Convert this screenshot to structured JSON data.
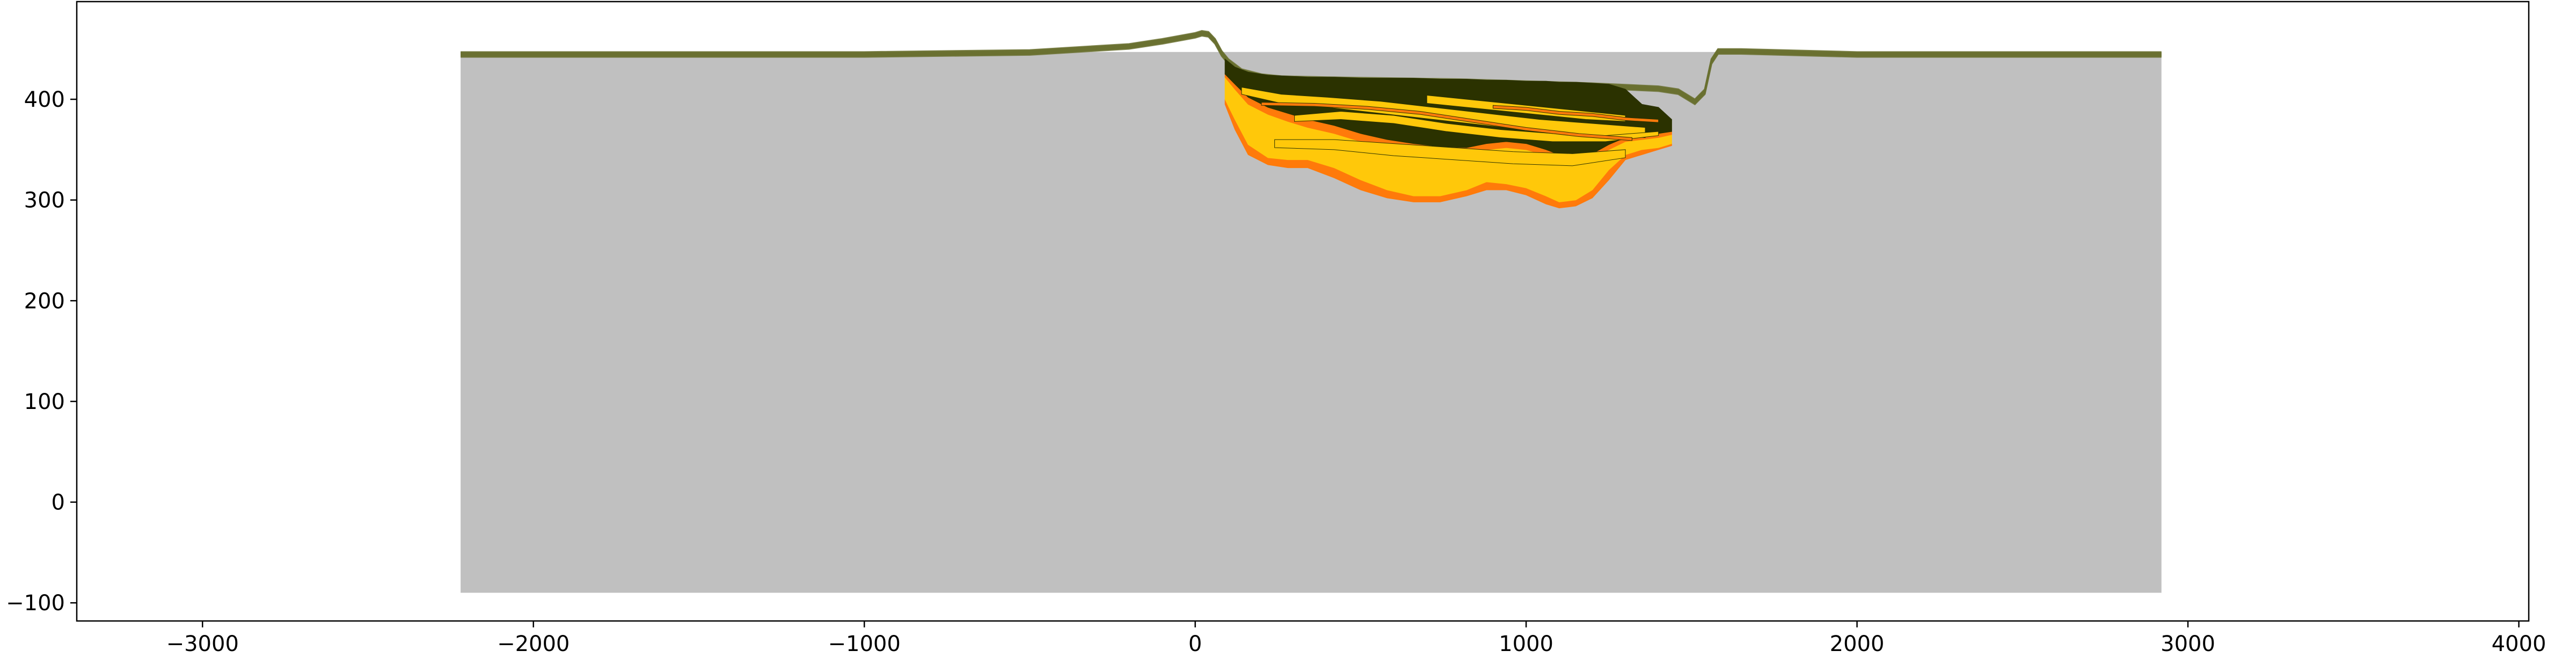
{
  "chart_data": {
    "type": "area",
    "title": "",
    "xlabel": "",
    "ylabel": "",
    "xlim": [
      -3380,
      4030
    ],
    "ylim": [
      -118,
      497
    ],
    "x_ticks": [
      -3000,
      -2000,
      -1000,
      0,
      1000,
      2000,
      3000,
      4000
    ],
    "x_tick_labels": [
      "−3000",
      "−2000",
      "−1000",
      "0",
      "1000",
      "2000",
      "3000",
      "4000"
    ],
    "y_ticks": [
      -100,
      0,
      100,
      200,
      300,
      400
    ],
    "y_tick_labels": [
      "−100",
      "0",
      "100",
      "200",
      "300",
      "400"
    ],
    "grid": false,
    "legend": "none",
    "basement_block": {
      "x": [
        -2220,
        2920
      ],
      "y": [
        -90,
        447
      ],
      "color": "#c0c0c0"
    },
    "layer_colors": {
      "dark": "#2b3200",
      "yellow": "#ffc80a",
      "orange": "#ff7a0a",
      "olive": "#6a7030"
    },
    "surface_profile": {
      "x": [
        -2220,
        -1000,
        -500,
        -200,
        -100,
        0,
        20,
        40,
        60,
        80,
        100,
        140,
        200,
        260,
        400,
        600,
        800,
        1000,
        1200,
        1400,
        1460,
        1510,
        1540,
        1560,
        1580,
        1650,
        2000,
        2920
      ],
      "y": [
        447,
        447,
        449,
        455,
        460,
        466,
        468,
        467,
        460,
        448,
        440,
        430,
        425,
        423,
        422,
        421,
        420,
        418,
        416,
        413,
        410,
        400,
        410,
        440,
        450,
        450,
        447,
        447
      ]
    },
    "fill_stack": {
      "x": [
        90,
        120,
        160,
        220,
        280,
        340,
        420,
        500,
        580,
        660,
        740,
        820,
        880,
        940,
        1000,
        1060,
        1100,
        1150,
        1200,
        1250,
        1300,
        1350,
        1400,
        1440
      ],
      "series": [
        {
          "color": "#ff7a0a",
          "top": [
            400,
            380,
            355,
            342,
            340,
            340,
            332,
            320,
            310,
            304,
            304,
            310,
            318,
            316,
            312,
            304,
            298,
            300,
            310,
            330,
            345,
            350,
            352,
            356
          ],
          "bottom": [
            395,
            370,
            345,
            335,
            332,
            332,
            322,
            310,
            302,
            298,
            298,
            304,
            310,
            310,
            305,
            296,
            292,
            294,
            302,
            320,
            340,
            345,
            350,
            354
          ]
        },
        {
          "color": "#ffc80a",
          "top": [
            422,
            410,
            395,
            385,
            378,
            372,
            366,
            358,
            352,
            348,
            346,
            346,
            350,
            352,
            350,
            344,
            338,
            336,
            340,
            350,
            358,
            360,
            362,
            365
          ],
          "bottom": [
            400,
            380,
            355,
            342,
            340,
            340,
            332,
            320,
            310,
            304,
            304,
            310,
            318,
            316,
            312,
            304,
            298,
            300,
            310,
            330,
            345,
            350,
            352,
            356
          ]
        },
        {
          "color": "#ff7a0a",
          "top": [
            425,
            415,
            402,
            392,
            386,
            380,
            374,
            366,
            360,
            356,
            353,
            352,
            356,
            358,
            356,
            350,
            345,
            343,
            346,
            355,
            362,
            364,
            366,
            368
          ],
          "bottom": [
            422,
            410,
            395,
            385,
            378,
            372,
            366,
            358,
            352,
            348,
            346,
            346,
            350,
            352,
            350,
            344,
            338,
            336,
            340,
            350,
            358,
            360,
            362,
            365
          ]
        },
        {
          "color": "#2b3200",
          "top": [
            440,
            432,
            427,
            424,
            423,
            422,
            422,
            421,
            421,
            421,
            420,
            420,
            419,
            419,
            418,
            418,
            417,
            417,
            416,
            415,
            410,
            395,
            392,
            380
          ],
          "bottom": [
            425,
            415,
            402,
            392,
            386,
            380,
            374,
            366,
            360,
            356,
            353,
            352,
            356,
            358,
            356,
            350,
            345,
            343,
            346,
            355,
            362,
            364,
            366,
            368
          ]
        }
      ]
    },
    "interbeds": [
      {
        "color": "#ffc80a",
        "x": [
          140,
          260,
          400,
          560,
          720,
          880,
          1040,
          1200,
          1360
        ],
        "top": [
          412,
          405,
          402,
          398,
          392,
          386,
          380,
          376,
          372
        ],
        "bottom": [
          405,
          396,
          392,
          386,
          380,
          374,
          368,
          364,
          362
        ]
      },
      {
        "color": "#ffc80a",
        "x": [
          300,
          440,
          600,
          760,
          920,
          1080,
          1240,
          1400
        ],
        "top": [
          384,
          388,
          384,
          376,
          370,
          366,
          364,
          368
        ],
        "bottom": [
          378,
          380,
          376,
          368,
          362,
          358,
          358,
          364
        ]
      },
      {
        "color": "#ff7a0a",
        "x": [
          200,
          360,
          520,
          680,
          840,
          1000,
          1160,
          1320
        ],
        "top": [
          397,
          396,
          393,
          388,
          380,
          372,
          366,
          362
        ],
        "bottom": [
          394,
          393,
          390,
          385,
          377,
          369,
          363,
          359
        ]
      },
      {
        "color": "#ffc80a",
        "x": [
          240,
          420,
          600,
          780,
          960,
          1140,
          1300
        ],
        "top": [
          360,
          360,
          356,
          352,
          348,
          346,
          350
        ],
        "bottom": [
          352,
          350,
          344,
          340,
          336,
          334,
          342
        ]
      },
      {
        "color": "#ffc80a",
        "x": [
          700,
          820,
          940,
          1060,
          1180,
          1300
        ],
        "top": [
          404,
          400,
          396,
          392,
          388,
          384
        ],
        "bottom": [
          396,
          392,
          388,
          384,
          380,
          378
        ]
      },
      {
        "color": "#ff7a0a",
        "x": [
          900,
          1000,
          1100,
          1200,
          1300,
          1400
        ],
        "top": [
          394,
          392,
          388,
          386,
          382,
          380
        ],
        "bottom": [
          391,
          389,
          385,
          383,
          379,
          377
        ]
      }
    ],
    "surface_line_count": 12
  }
}
